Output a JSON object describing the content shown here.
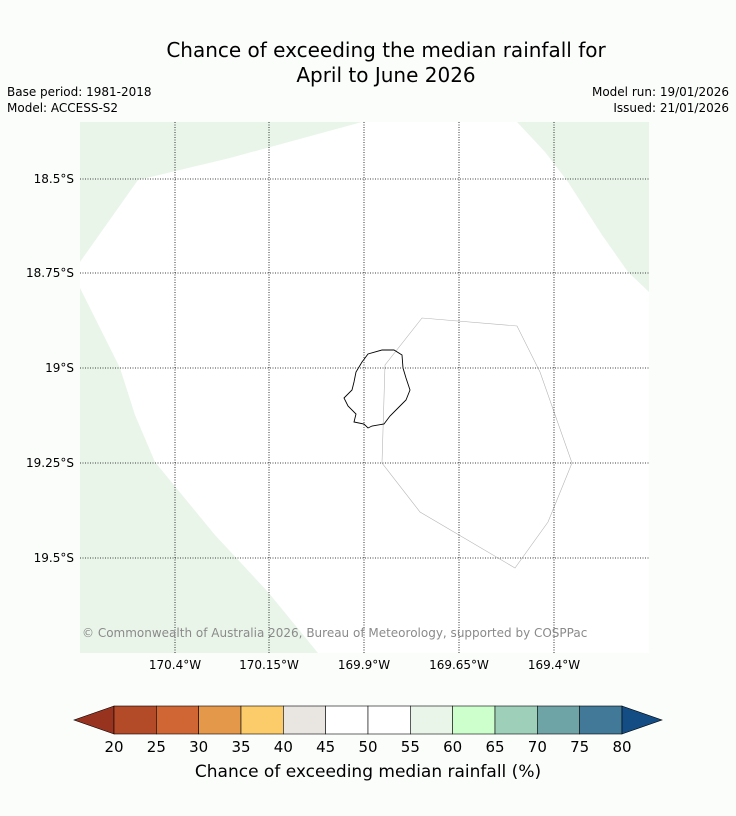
{
  "title_line1": "Chance of exceeding the median rainfall for",
  "title_line2": "April to June 2026",
  "meta": {
    "base_period": "Base period: 1981-2018",
    "model": "Model: ACCESS-S2",
    "model_run": "Model run: 19/01/2026",
    "issued": "Issued: 21/01/2026"
  },
  "map": {
    "lat_labels": [
      "18.5°S",
      "18.75°S",
      "19°S",
      "19.25°S",
      "19.5°S"
    ],
    "lon_labels": [
      "170.4°W",
      "170.15°W",
      "169.9°W",
      "169.65°W",
      "169.4°W"
    ],
    "copyright": "© Commonwealth of Australia 2026, Bureau of Meteorology, supported by COSPPac",
    "island": "Niue",
    "region_category": "55-60",
    "region_color": "#eaf5ea",
    "background_category": "50-55",
    "background_color": "#ffffff"
  },
  "colorbar": {
    "title": "Chance of exceeding median rainfall (%)",
    "ticks": [
      "20",
      "25",
      "30",
      "35",
      "40",
      "45",
      "50",
      "55",
      "60",
      "65",
      "70",
      "75",
      "80"
    ],
    "colors": [
      "#b34b28",
      "#cf6633",
      "#e3984a",
      "#fdcc6a",
      "#e9e6e2",
      "#ffffff",
      "#ffffff",
      "#eaf5ea",
      "#ccffcc",
      "#9ecfb9",
      "#6fa4a7",
      "#427998"
    ],
    "under_color": "#983320",
    "over_color": "#134d84"
  }
}
